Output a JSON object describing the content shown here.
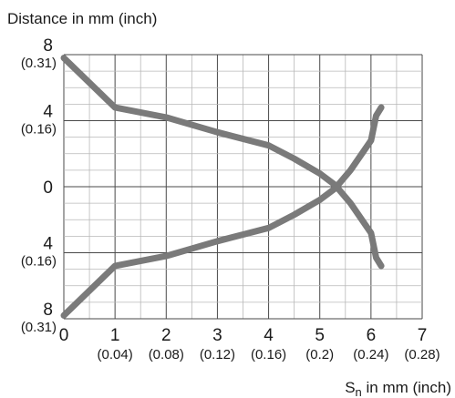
{
  "chart_data": {
    "type": "line",
    "ylabel": "Distance in mm (inch)",
    "xlabel_main": "S",
    "xlabel_sub": "n",
    "xlabel_rest": " in mm (inch)",
    "xlim": [
      0,
      7
    ],
    "ylim": [
      8,
      -8
    ],
    "x_ticks": [
      {
        "value": 0,
        "mm": "0",
        "inch": ""
      },
      {
        "value": 1,
        "mm": "1",
        "inch": "(0.04)"
      },
      {
        "value": 2,
        "mm": "2",
        "inch": "(0.08)"
      },
      {
        "value": 3,
        "mm": "3",
        "inch": "(0.12)"
      },
      {
        "value": 4,
        "mm": "4",
        "inch": "(0.16)"
      },
      {
        "value": 5,
        "mm": "5",
        "inch": "(0.2)"
      },
      {
        "value": 6,
        "mm": "6",
        "inch": "(0.24)"
      },
      {
        "value": 7,
        "mm": "7",
        "inch": "(0.28)"
      }
    ],
    "y_ticks": [
      {
        "value": 8,
        "mm": "8",
        "inch": "(0.31)"
      },
      {
        "value": 4,
        "mm": "4",
        "inch": "(0.16)"
      },
      {
        "value": 0,
        "mm": "0",
        "inch": ""
      },
      {
        "value": -4,
        "mm": "4",
        "inch": "(0.16)"
      },
      {
        "value": -8,
        "mm": "8",
        "inch": "(0.31)"
      }
    ],
    "grid": true,
    "series": [
      {
        "color": "#7a7a7a",
        "x": [
          0,
          1,
          2,
          3,
          4,
          4.5,
          5,
          5.3,
          5.6,
          6,
          6.1,
          6.2
        ],
        "y": [
          7.8,
          4.8,
          4.2,
          3.3,
          2.5,
          1.7,
          0.8,
          0.1,
          -1.0,
          -2.8,
          -4.3,
          -4.8
        ]
      },
      {
        "color": "#7a7a7a",
        "x": [
          0,
          1,
          2,
          3,
          4,
          4.5,
          5,
          5.3,
          5.6,
          6,
          6.1,
          6.2
        ],
        "y": [
          -7.8,
          -4.8,
          -4.2,
          -3.3,
          -2.5,
          -1.7,
          -0.8,
          -0.1,
          1.0,
          2.8,
          4.3,
          4.8
        ]
      }
    ]
  }
}
